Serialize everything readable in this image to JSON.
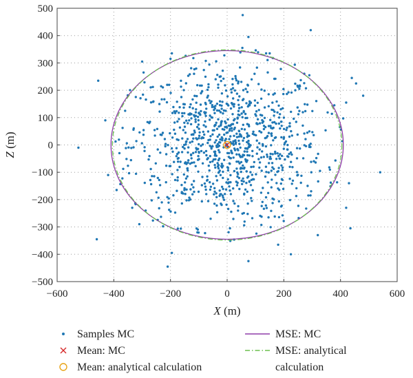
{
  "chart_data": {
    "type": "scatter",
    "xlabel_var": "X",
    "xlabel_unit": " (m)",
    "ylabel_var": "Z",
    "ylabel_unit": " (m)",
    "xlim": [
      -600,
      600
    ],
    "ylim": [
      -500,
      500
    ],
    "x_ticks": [
      -600,
      -400,
      -200,
      0,
      200,
      400,
      600
    ],
    "y_ticks": [
      -500,
      -400,
      -300,
      -200,
      -100,
      0,
      100,
      200,
      300,
      400,
      500
    ],
    "grid": "dotted",
    "legend": {
      "placement": "bottom",
      "entries": [
        {
          "label": "Samples MC",
          "marker": "dot",
          "color": "#1f77b4"
        },
        {
          "label": "Mean: MC",
          "marker": "x",
          "color": "#d62728"
        },
        {
          "label": "Mean: analytical calculation",
          "marker": "circle",
          "color": "#e8a317"
        },
        {
          "label": "MSE: MC",
          "marker": "line",
          "color": "#8e3ba8"
        },
        {
          "label": "MSE: analytical calculation",
          "label_lines": [
            "MSE: analytical",
            "calculation"
          ],
          "marker": "dashdot",
          "color": "#6bbf4f"
        }
      ]
    },
    "series": [
      {
        "name": "Samples MC",
        "style": "scatter",
        "color": "#1f77b4",
        "count": 1000,
        "std_x": 170,
        "std_z": 145,
        "outliers": [
          {
            "x": 55,
            "z": 475
          },
          {
            "x": 295,
            "z": 420
          },
          {
            "x": 75,
            "z": 395
          },
          {
            "x": -195,
            "z": 335
          },
          {
            "x": 150,
            "z": 335
          },
          {
            "x": -300,
            "z": 305
          },
          {
            "x": -295,
            "z": 265
          },
          {
            "x": 290,
            "z": 255
          },
          {
            "x": 440,
            "z": 245
          },
          {
            "x": -455,
            "z": 235
          },
          {
            "x": 455,
            "z": 225
          },
          {
            "x": 480,
            "z": 180
          },
          {
            "x": 420,
            "z": 155
          },
          {
            "x": -360,
            "z": 125
          },
          {
            "x": -430,
            "z": 90
          },
          {
            "x": -525,
            "z": -10
          },
          {
            "x": 540,
            "z": -100
          },
          {
            "x": -420,
            "z": -110
          },
          {
            "x": 430,
            "z": -140
          },
          {
            "x": -390,
            "z": -165
          },
          {
            "x": -335,
            "z": -230
          },
          {
            "x": 420,
            "z": -230
          },
          {
            "x": -310,
            "z": -290
          },
          {
            "x": 435,
            "z": -305
          },
          {
            "x": -460,
            "z": -345
          },
          {
            "x": 320,
            "z": -330
          },
          {
            "x": 180,
            "z": -365
          },
          {
            "x": 225,
            "z": -400
          },
          {
            "x": 75,
            "z": -425
          },
          {
            "x": -210,
            "z": -445
          },
          {
            "x": -195,
            "z": -395
          },
          {
            "x": 10,
            "z": -305
          },
          {
            "x": -105,
            "z": -320
          }
        ]
      },
      {
        "name": "Mean: MC",
        "style": "marker-x",
        "color": "#d62728",
        "x": 0,
        "z": 0
      },
      {
        "name": "Mean: analytical calculation",
        "style": "marker-circle",
        "color": "#e8a317",
        "x": 0,
        "z": 0
      },
      {
        "name": "MSE: MC",
        "style": "ellipse",
        "color": "#8e3ba8",
        "cx": 0,
        "cz": 0,
        "rx": 410,
        "rz": 345
      },
      {
        "name": "MSE: analytical calculation",
        "style": "ellipse-dashdot",
        "color": "#6bbf4f",
        "cx": 0,
        "cz": 0,
        "rx": 405,
        "rz": 348
      }
    ]
  }
}
